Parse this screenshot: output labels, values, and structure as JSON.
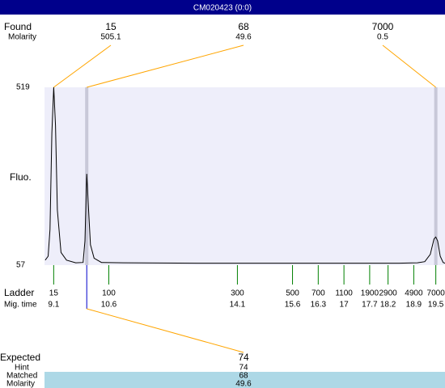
{
  "chart_data": {
    "type": "line",
    "title": "CM020423 (0:0)",
    "y_label": "Fluo.",
    "color": "#000000",
    "background": "#eeeefa",
    "xlim": [
      8.85,
      19.75
    ],
    "ylim": [
      57,
      519
    ],
    "yticks": [
      57,
      519
    ],
    "x": [
      8.87,
      8.95,
      9.0,
      9.05,
      9.1,
      9.15,
      9.2,
      9.3,
      9.45,
      9.7,
      9.9,
      9.95,
      10.0,
      10.05,
      10.1,
      10.2,
      10.4,
      11,
      13,
      15,
      17,
      18.5,
      19.0,
      19.2,
      19.35,
      19.45,
      19.5,
      19.55,
      19.62,
      19.7,
      19.75
    ],
    "values": [
      70,
      80,
      150,
      400,
      519,
      420,
      200,
      90,
      70,
      63,
      64,
      120,
      294,
      200,
      110,
      75,
      64,
      63,
      62,
      62,
      62,
      62,
      63,
      66,
      85,
      125,
      130,
      120,
      80,
      64,
      62
    ],
    "found": {
      "label": "Found",
      "molarity_label": "Molarity",
      "sizes": [
        15,
        68,
        7000
      ],
      "molarity": [
        505.1,
        49.6,
        0.5
      ],
      "x": [
        9.1,
        10.0,
        19.5
      ]
    },
    "ladder": {
      "label": "Ladder",
      "time_label": "Mig. time",
      "sizes": [
        15,
        100,
        300,
        500,
        700,
        1100,
        1900,
        2900,
        4900,
        7000
      ],
      "times": [
        9.1,
        10.6,
        14.1,
        15.6,
        16.3,
        17,
        17.7,
        18.2,
        18.9,
        19.5
      ]
    },
    "expected": {
      "label": "Expected",
      "value": 74,
      "hint_label": "Hint",
      "hint": 74,
      "matched_label": "Matched",
      "matched": 68,
      "molarity_label": "Molarity",
      "molarity": 49.6,
      "x": 10.0
    }
  }
}
